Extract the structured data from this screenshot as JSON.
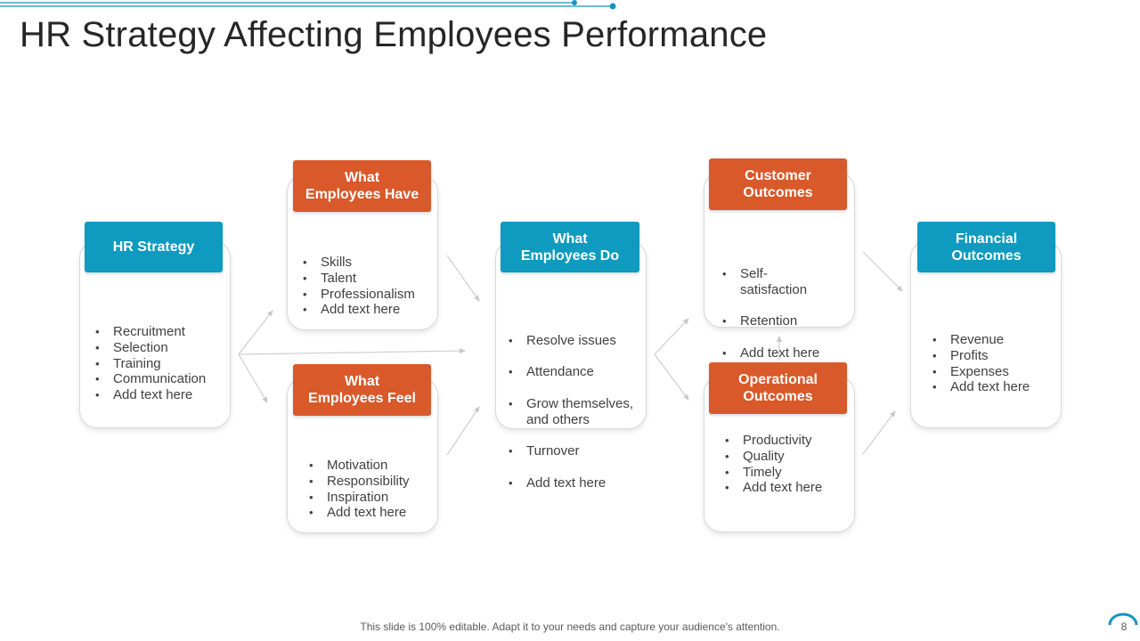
{
  "title": "HR Strategy Affecting Employees Performance",
  "colors": {
    "teal": "#0e9bbf",
    "orange": "#d9592a",
    "deco_line": "#1593c4"
  },
  "boxes": {
    "hr_strategy": {
      "header": "HR Strategy",
      "items": [
        "Recruitment",
        "Selection",
        "Training",
        "Communication",
        "Add text here"
      ]
    },
    "employees_have": {
      "header": "What\nEmployees Have",
      "items": [
        "Skills",
        "Talent",
        "Professionalism",
        "Add text here"
      ]
    },
    "employees_feel": {
      "header": "What\nEmployees Feel",
      "items": [
        "Motivation",
        "Responsibility",
        "Inspiration",
        "Add text here"
      ]
    },
    "employees_do": {
      "header": "What\nEmployees Do",
      "items": [
        "Resolve issues",
        "Attendance",
        "Grow themselves,\nand others",
        "Turnover",
        "Add text here"
      ]
    },
    "customer_outcomes": {
      "header": "Customer\nOutcomes",
      "items": [
        "Self-\nsatisfaction",
        "Retention",
        "Add text here"
      ]
    },
    "operational_outcomes": {
      "header": "Operational\nOutcomes",
      "items": [
        "Productivity",
        "Quality",
        "Timely",
        "Add text here"
      ]
    },
    "financial_outcomes": {
      "header": "Financial\nOutcomes",
      "items": [
        "Revenue",
        "Profits",
        "Expenses",
        "Add text here"
      ]
    }
  },
  "footer": {
    "note": "This slide is 100% editable. Adapt it to your needs and capture your audience's attention.",
    "page_number": "8"
  }
}
